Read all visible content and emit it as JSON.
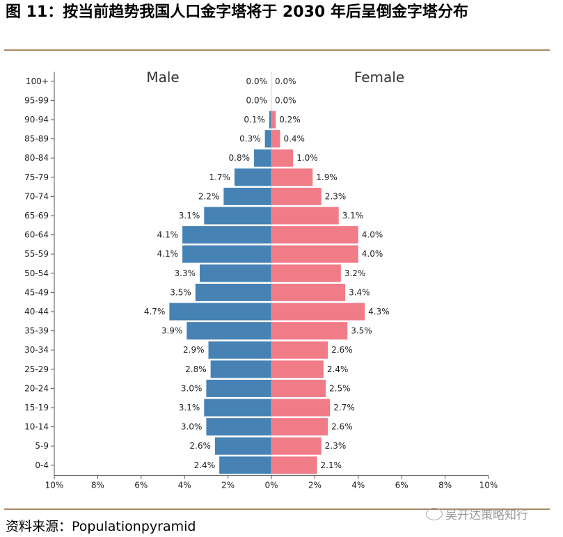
{
  "figure": {
    "title": "图 11：按当前趋势我国人口金字塔将于 2030 年后呈倒金字塔分布",
    "source": "资料来源：Populationpyramid",
    "watermark": "吴开达策略知行"
  },
  "colors": {
    "male": "#4682b4",
    "female": "#f07c87",
    "rule": "#a88761",
    "axis": "#555555"
  },
  "chart_data": {
    "type": "bar",
    "orientation": "horizontal-pyramid",
    "categories": [
      "100+",
      "95-99",
      "90-94",
      "85-89",
      "80-84",
      "75-79",
      "70-74",
      "65-69",
      "60-64",
      "55-59",
      "50-54",
      "45-49",
      "40-44",
      "35-39",
      "30-34",
      "25-29",
      "20-24",
      "15-19",
      "10-14",
      "5-9",
      "0-4"
    ],
    "series": [
      {
        "name": "Male",
        "values": [
          0.0,
          0.0,
          0.1,
          0.3,
          0.8,
          1.7,
          2.2,
          3.1,
          4.1,
          4.1,
          3.3,
          3.5,
          4.7,
          3.9,
          2.9,
          2.8,
          3.0,
          3.1,
          3.0,
          2.6,
          2.4
        ],
        "labels": [
          "0.0%",
          "0.0%",
          "0.1%",
          "0.3%",
          "0.8%",
          "1.7%",
          "2.2%",
          "3.1%",
          "4.1%",
          "4.1%",
          "3.3%",
          "3.5%",
          "4.7%",
          "3.9%",
          "2.9%",
          "2.8%",
          "3.0%",
          "3.1%",
          "3.0%",
          "2.6%",
          "2.4%"
        ]
      },
      {
        "name": "Female",
        "values": [
          0.0,
          0.0,
          0.2,
          0.4,
          1.0,
          1.9,
          2.3,
          3.1,
          4.0,
          4.0,
          3.2,
          3.4,
          4.3,
          3.5,
          2.6,
          2.4,
          2.5,
          2.7,
          2.6,
          2.3,
          2.1
        ],
        "labels": [
          "0.0%",
          "0.0%",
          "0.2%",
          "0.4%",
          "1.0%",
          "1.9%",
          "2.3%",
          "3.1%",
          "4.0%",
          "4.0%",
          "3.2%",
          "3.4%",
          "4.3%",
          "3.5%",
          "2.6%",
          "2.4%",
          "2.5%",
          "2.7%",
          "2.6%",
          "2.3%",
          "2.1%"
        ]
      }
    ],
    "xlim": [
      -10,
      10
    ],
    "x_ticks": [
      "10%",
      "8%",
      "6%",
      "4%",
      "2%",
      "0%",
      "2%",
      "4%",
      "6%",
      "8%",
      "10%"
    ],
    "grid": false
  }
}
